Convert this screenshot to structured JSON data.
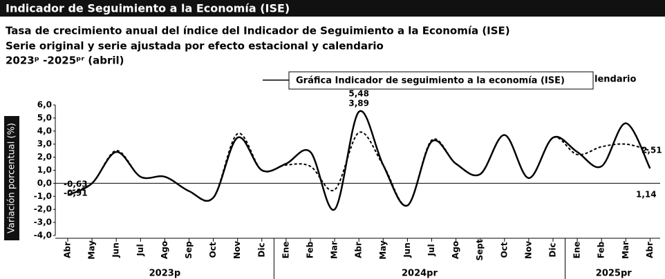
{
  "chart_data": {
    "type": "line",
    "title": "Indicador de Seguimiento a la Economía (ISE)",
    "subtitle": [
      "Tasa de crecimiento anual del índice del Indicador de Seguimiento a la Economía (ISE)",
      "Serie original y serie ajustada por efecto estacional y calendario",
      "2023ᵖ -2025ᵖʳ (abril)"
    ],
    "tooltip": "Gráfica Indicador de seguimiento a la economía (ISE)",
    "legend_fragment": "lendario",
    "y_label": "Variación porcentual (%)",
    "categories": [
      "Abr",
      "May",
      "Jun",
      "Jul",
      "Ago",
      "Sep",
      "Oct",
      "Nov",
      "Dic",
      "Ene",
      "Feb",
      "Mar",
      "Abr",
      "May",
      "Jun",
      "Jul",
      "Ago",
      "Sept",
      "Oct",
      "Nov",
      "Dic",
      "Ene",
      "Feb",
      "Mar",
      "Abr"
    ],
    "groups": [
      {
        "label": "2023p",
        "count": 9
      },
      {
        "label": "2024pr",
        "count": 12
      },
      {
        "label": "2025pr",
        "count": 4
      }
    ],
    "series": [
      {
        "color": "#000000",
        "dash": false,
        "values": [
          -0.91,
          0.0,
          2.4,
          0.5,
          0.5,
          -0.6,
          -1.1,
          3.5,
          1.0,
          1.5,
          2.4,
          -2.0,
          5.48,
          1.4,
          -1.7,
          3.2,
          1.5,
          0.7,
          3.7,
          0.4,
          3.5,
          2.4,
          1.3,
          4.6,
          1.14
        ],
        "value_labels": [
          "-0,91",
          null,
          null,
          null,
          null,
          null,
          null,
          null,
          null,
          null,
          null,
          null,
          "5,48",
          null,
          null,
          null,
          null,
          null,
          null,
          null,
          null,
          null,
          null,
          null,
          "1,14"
        ]
      },
      {
        "color": "#000000",
        "dash": true,
        "values": [
          -0.63,
          0.0,
          2.5,
          0.5,
          0.5,
          -0.6,
          -1.1,
          3.8,
          1.0,
          1.4,
          1.3,
          -0.5,
          3.89,
          1.4,
          -1.7,
          3.3,
          1.5,
          0.7,
          3.7,
          0.4,
          3.5,
          2.2,
          2.8,
          3.0,
          2.51
        ],
        "value_labels": [
          "-0,63",
          null,
          null,
          null,
          null,
          null,
          null,
          null,
          null,
          null,
          null,
          null,
          "3,89",
          null,
          null,
          null,
          null,
          null,
          null,
          null,
          null,
          null,
          null,
          null,
          "2,51"
        ]
      }
    ],
    "ylim": [
      -4,
      6
    ],
    "yticks": [
      {
        "value": 6,
        "label": "6,0"
      },
      {
        "value": 5,
        "label": "5,0"
      },
      {
        "value": 4,
        "label": "4,0"
      },
      {
        "value": 3,
        "label": "3,0"
      },
      {
        "value": 2,
        "label": "2,0"
      },
      {
        "value": 1,
        "label": "1,0"
      },
      {
        "value": 0,
        "label": "0,0"
      },
      {
        "value": -1,
        "label": "-1,0"
      },
      {
        "value": -2,
        "label": "-2,0"
      },
      {
        "value": -3,
        "label": "-3,0"
      },
      {
        "value": -4,
        "label": "-4,0"
      }
    ]
  }
}
